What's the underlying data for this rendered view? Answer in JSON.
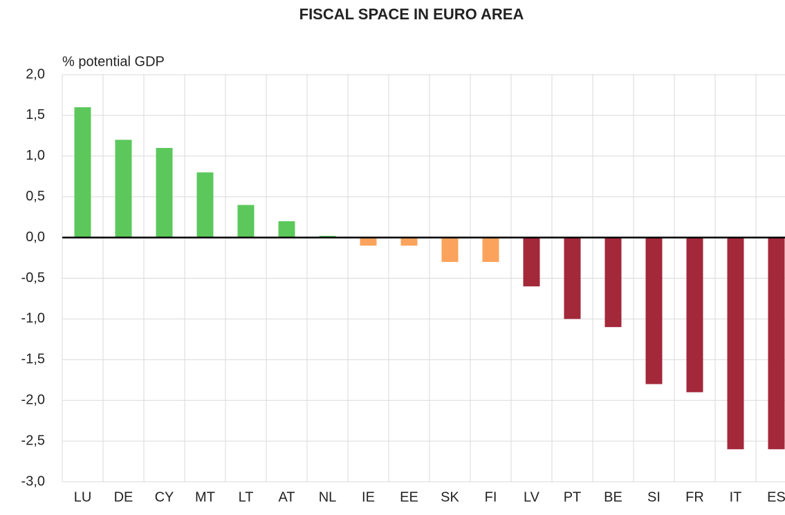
{
  "chart_data": {
    "type": "bar",
    "title": "FISCAL SPACE IN EURO AREA",
    "y_label": "% potential GDP",
    "categories": [
      "LU",
      "DE",
      "CY",
      "MT",
      "LT",
      "AT",
      "NL",
      "IE",
      "EE",
      "SK",
      "FI",
      "LV",
      "PT",
      "BE",
      "SI",
      "FR",
      "IT",
      "ES"
    ],
    "values": [
      1.6,
      1.2,
      1.1,
      0.8,
      0.4,
      0.2,
      0.02,
      -0.1,
      -0.1,
      -0.3,
      -0.3,
      -0.6,
      -1.0,
      -1.1,
      -1.8,
      -1.9,
      -2.6,
      -2.6
    ],
    "colors": [
      "#5cc85c",
      "#5cc85c",
      "#5cc85c",
      "#5cc85c",
      "#5cc85c",
      "#5cc85c",
      "#5cc85c",
      "#fba35c",
      "#fba35c",
      "#fba35c",
      "#fba35c",
      "#a3283a",
      "#a3283a",
      "#a3283a",
      "#a3283a",
      "#a3283a",
      "#a3283a",
      "#a3283a"
    ],
    "ylim": [
      -3.0,
      2.0
    ],
    "yticks": [
      {
        "value": 2.0,
        "label": "2,0"
      },
      {
        "value": 1.5,
        "label": "1,5"
      },
      {
        "value": 1.0,
        "label": "1,0"
      },
      {
        "value": 0.5,
        "label": "0,5"
      },
      {
        "value": 0,
        "label": "0,0"
      },
      {
        "value": -0.5,
        "label": "-0,5"
      },
      {
        "value": -1.0,
        "label": "-1,0"
      },
      {
        "value": -1.5,
        "label": "-1,5"
      },
      {
        "value": -2.0,
        "label": "-2,0"
      },
      {
        "value": -2.5,
        "label": "-2,5"
      },
      {
        "value": -3.0,
        "label": "-3,0"
      }
    ],
    "grid": true
  }
}
